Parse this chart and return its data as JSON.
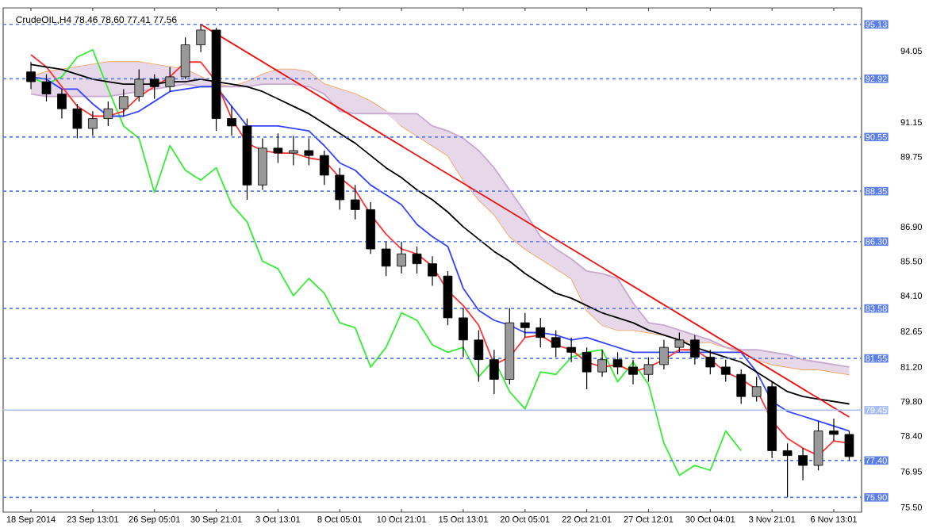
{
  "chart_data": {
    "type": "candlestick",
    "title": "CrudeOIL,H4  78.46 78.60 77.41 77.56",
    "categories": [
      "18 Sep 2014",
      null,
      null,
      null,
      "23 Sep 13:01",
      null,
      null,
      null,
      "26 Sep 05:01",
      null,
      null,
      null,
      "30 Sep 21:01",
      null,
      null,
      null,
      "3 Oct 13:01",
      null,
      null,
      null,
      "8 Oct 05:01",
      null,
      null,
      null,
      "10 Oct 21:01",
      null,
      null,
      null,
      "15 Oct 13:01",
      null,
      null,
      null,
      "20 Oct 05:01",
      null,
      null,
      null,
      "22 Oct 21:01",
      null,
      null,
      null,
      "27 Oct 12:01",
      null,
      null,
      null,
      "30 Oct 04:01",
      null,
      null,
      null,
      "3 Nov 21:01",
      null,
      null,
      null,
      "6 Nov 13:01",
      null
    ],
    "ohlc": [
      [
        93.2,
        93.6,
        92.5,
        92.8
      ],
      [
        92.8,
        93.1,
        92.0,
        92.3
      ],
      [
        92.3,
        92.5,
        91.3,
        91.7
      ],
      [
        91.7,
        91.9,
        90.5,
        90.9
      ],
      [
        90.9,
        91.6,
        90.6,
        91.3
      ],
      [
        91.3,
        92.0,
        91.0,
        91.7
      ],
      [
        91.7,
        92.5,
        91.4,
        92.2
      ],
      [
        92.2,
        93.3,
        92.0,
        92.9
      ],
      [
        92.9,
        93.1,
        92.1,
        92.6
      ],
      [
        92.6,
        93.4,
        92.4,
        93.0
      ],
      [
        93.0,
        94.6,
        92.9,
        94.3
      ],
      [
        94.3,
        95.13,
        94.0,
        94.9
      ],
      [
        94.9,
        95.0,
        90.8,
        91.3
      ],
      [
        91.3,
        91.8,
        90.6,
        91.0
      ],
      [
        91.0,
        91.3,
        88.0,
        88.6
      ],
      [
        88.6,
        90.5,
        88.4,
        90.1
      ],
      [
        90.1,
        90.7,
        89.5,
        89.9
      ],
      [
        89.9,
        90.6,
        89.4,
        90.0
      ],
      [
        90.0,
        90.5,
        89.4,
        89.8
      ],
      [
        89.8,
        90.0,
        88.6,
        89.0
      ],
      [
        89.0,
        89.3,
        87.6,
        88.0
      ],
      [
        88.0,
        88.6,
        87.2,
        87.6
      ],
      [
        87.6,
        87.9,
        85.8,
        86.0
      ],
      [
        86.0,
        86.3,
        84.9,
        85.3
      ],
      [
        85.3,
        86.3,
        85.0,
        85.8
      ],
      [
        85.8,
        86.1,
        85.0,
        85.4
      ],
      [
        85.4,
        85.7,
        84.5,
        84.9
      ],
      [
        84.9,
        85.1,
        82.9,
        83.2
      ],
      [
        83.2,
        83.6,
        81.6,
        82.3
      ],
      [
        82.3,
        82.7,
        80.6,
        81.5
      ],
      [
        81.5,
        81.9,
        80.1,
        80.7
      ],
      [
        80.7,
        83.6,
        80.5,
        83.0
      ],
      [
        83.0,
        83.4,
        82.4,
        82.8
      ],
      [
        82.8,
        83.2,
        82.0,
        82.4
      ],
      [
        82.4,
        82.7,
        81.6,
        82.0
      ],
      [
        82.0,
        82.4,
        81.4,
        81.8
      ],
      [
        81.8,
        82.0,
        80.3,
        81.0
      ],
      [
        81.0,
        81.9,
        80.8,
        81.5
      ],
      [
        81.5,
        81.8,
        80.9,
        81.2
      ],
      [
        81.2,
        81.5,
        80.5,
        80.9
      ],
      [
        80.9,
        81.6,
        80.6,
        81.3
      ],
      [
        81.3,
        82.3,
        81.1,
        82.0
      ],
      [
        82.0,
        82.6,
        81.8,
        82.3
      ],
      [
        82.3,
        82.5,
        81.3,
        81.6
      ],
      [
        81.6,
        81.9,
        80.9,
        81.2
      ],
      [
        81.2,
        81.5,
        80.6,
        80.9
      ],
      [
        80.9,
        81.1,
        79.7,
        80.0
      ],
      [
        80.0,
        80.8,
        79.8,
        80.4
      ],
      [
        80.4,
        80.6,
        77.5,
        77.8
      ],
      [
        77.8,
        78.1,
        75.9,
        77.6
      ],
      [
        77.6,
        77.9,
        76.6,
        77.2
      ],
      [
        77.2,
        79.0,
        77.0,
        78.6
      ],
      [
        78.6,
        79.1,
        78.2,
        78.46
      ],
      [
        78.46,
        78.6,
        77.41,
        77.56
      ]
    ],
    "series": [
      {
        "type": "line",
        "color": "#f4a460",
        "values": [
          93.0,
          93.2,
          93.3,
          93.4,
          93.5,
          93.6,
          93.6,
          93.6,
          93.5,
          93.4,
          93.3,
          93.0,
          92.7,
          92.6,
          92.8,
          93.1,
          93.3,
          93.3,
          93.2,
          92.7,
          92.5,
          92.3,
          92.0,
          91.6,
          91.0,
          90.6,
          90.2,
          89.8,
          88.8,
          88.0,
          87.4,
          86.5,
          86.0,
          85.6,
          85.2,
          84.8,
          83.5,
          82.9,
          82.7,
          82.7,
          82.6,
          82.5,
          82.3,
          82.2,
          82.2,
          82.0,
          81.8,
          81.5,
          81.3,
          81.2,
          81.1,
          81.1,
          81.0,
          80.9
        ]
      },
      {
        "type": "line",
        "color": "#c8a8d0",
        "values": [
          92.3,
          92.2,
          92.2,
          92.2,
          92.2,
          92.2,
          92.3,
          92.4,
          92.5,
          92.6,
          92.7,
          92.6,
          92.6,
          92.6,
          92.6,
          92.7,
          92.7,
          92.7,
          92.6,
          92.3,
          91.6,
          91.5,
          91.5,
          91.5,
          91.5,
          91.5,
          91.0,
          90.8,
          90.5,
          90.0,
          89.3,
          88.4,
          87.5,
          86.5,
          86.0,
          85.6,
          85.1,
          85.0,
          84.8,
          83.8,
          83.0,
          82.9,
          82.7,
          82.5,
          82.3,
          82.0,
          81.9,
          81.9,
          81.8,
          81.7,
          81.5,
          81.4,
          81.3,
          81.2
        ],
        "lower": [
          92.3,
          92.2,
          92.2,
          92.2,
          92.2,
          92.2,
          92.3,
          92.4,
          92.5,
          92.6,
          92.7,
          92.6,
          92.6,
          92.6,
          92.6,
          92.7,
          92.7,
          92.7,
          92.6,
          92.3,
          91.6,
          91.5,
          91.5,
          91.5,
          91.0,
          90.6,
          90.2,
          89.8,
          88.8,
          88.0,
          87.4,
          86.5,
          86.0,
          85.6,
          85.2,
          84.8,
          83.5,
          82.9,
          82.7,
          82.7,
          82.6,
          82.5,
          82.3,
          82.2,
          82.2,
          82.0,
          81.8,
          81.5,
          81.3,
          81.2,
          81.1,
          81.1,
          81.0,
          80.9
        ],
        "upper": [
          93.0,
          93.2,
          93.3,
          93.4,
          93.5,
          93.6,
          93.6,
          93.6,
          93.5,
          93.4,
          93.3,
          93.0,
          92.7,
          92.6,
          92.8,
          93.1,
          93.3,
          93.3,
          93.2,
          92.7,
          92.5,
          92.3,
          92.0,
          91.6,
          91.5,
          91.5,
          91.0,
          90.8,
          90.5,
          90.0,
          89.3,
          88.4,
          87.5,
          86.5,
          86.0,
          85.6,
          85.1,
          85.0,
          84.8,
          83.8,
          83.0,
          82.9,
          82.7,
          82.5,
          82.3,
          82.0,
          81.9,
          81.9,
          81.8,
          81.7,
          81.5,
          81.4,
          81.3,
          81.2
        ]
      },
      {
        "type": "line",
        "color": "#33ee33",
        "values": [
          93.0,
          92.7,
          93.0,
          93.8,
          94.1,
          92.5,
          91.0,
          90.5,
          88.3,
          90.2,
          89.2,
          88.8,
          89.3,
          87.8,
          87.1,
          85.5,
          85.2,
          84.1,
          84.8,
          84.2,
          83.0,
          82.8,
          81.2,
          82.0,
          83.4,
          83.1,
          82.1,
          81.8,
          82.0,
          80.8,
          81.5,
          80.2,
          79.5,
          81.0,
          80.9,
          81.6,
          81.8,
          81.9,
          80.6,
          81.4,
          80.5,
          78.1,
          76.8,
          77.2,
          77.0,
          78.6,
          77.8,
          null,
          null,
          null,
          null,
          null,
          null,
          null
        ]
      },
      {
        "type": "line",
        "color": "#3344ff",
        "values": [
          93.0,
          92.9,
          92.5,
          92.5,
          91.9,
          91.4,
          91.4,
          91.6,
          92.0,
          92.4,
          92.5,
          92.6,
          92.6,
          91.8,
          91.0,
          91.0,
          91.0,
          90.9,
          90.8,
          90.2,
          89.5,
          89.2,
          88.6,
          88.2,
          87.8,
          87.0,
          86.5,
          86.1,
          84.4,
          83.5,
          83.1,
          82.9,
          82.6,
          82.6,
          82.5,
          82.3,
          82.4,
          82.2,
          82.0,
          81.8,
          81.8,
          81.8,
          81.8,
          81.8,
          81.8,
          81.8,
          81.8,
          81.0,
          79.8,
          79.4,
          79.2,
          79.0,
          78.8,
          78.6
        ]
      },
      {
        "type": "line",
        "color": "#ff3333",
        "values": [
          93.9,
          93.4,
          92.6,
          91.8,
          91.4,
          91.4,
          91.6,
          92.2,
          92.6,
          93.0,
          93.6,
          93.6,
          92.8,
          91.3,
          90.3,
          90.0,
          89.9,
          89.9,
          89.7,
          89.6,
          88.9,
          88.4,
          87.4,
          86.6,
          86.0,
          85.8,
          85.3,
          84.3,
          83.7,
          82.9,
          81.3,
          81.6,
          82.4,
          82.5,
          82.1,
          81.9,
          81.4,
          81.2,
          81.3,
          81.0,
          81.2,
          81.5,
          81.9,
          81.9,
          81.5,
          81.0,
          80.7,
          80.3,
          79.0,
          78.3,
          77.9,
          77.6,
          78.2,
          78.1
        ]
      },
      {
        "type": "line",
        "color": "#000000",
        "values": [
          93.5,
          93.4,
          93.3,
          93.1,
          92.9,
          92.8,
          92.7,
          92.7,
          92.7,
          92.8,
          92.8,
          92.9,
          92.8,
          92.7,
          92.6,
          92.4,
          92.1,
          91.8,
          91.5,
          91.1,
          90.7,
          90.3,
          89.8,
          89.3,
          88.9,
          88.4,
          88.0,
          87.5,
          86.9,
          86.4,
          85.9,
          85.5,
          85.0,
          84.6,
          84.2,
          84.0,
          83.7,
          83.4,
          83.2,
          83.0,
          82.7,
          82.5,
          82.3,
          82.0,
          81.8,
          81.6,
          81.4,
          81.0,
          80.6,
          80.2,
          80.0,
          79.9,
          79.8,
          79.7
        ]
      },
      {
        "type": "line",
        "color": "#ee1111",
        "values": [
          null,
          null,
          null,
          null,
          null,
          null,
          null,
          null,
          null,
          null,
          null,
          95.13,
          94.75,
          94.37,
          93.99,
          93.61,
          93.23,
          92.85,
          92.47,
          92.09,
          91.71,
          91.33,
          90.95,
          90.57,
          90.19,
          89.81,
          89.43,
          89.05,
          88.67,
          88.29,
          87.91,
          87.53,
          87.15,
          86.77,
          86.39,
          86.01,
          85.63,
          85.25,
          84.87,
          84.49,
          84.11,
          83.73,
          83.35,
          82.97,
          82.59,
          82.21,
          81.83,
          81.45,
          81.07,
          80.69,
          80.31,
          79.93,
          79.55,
          79.17
        ]
      }
    ],
    "ylim": [
      75.3,
      95.8
    ],
    "yticks": [
      94.05,
      91.15,
      89.75,
      {
        "value": 86.9,
        "label": "86.90"
      },
      {
        "value": 85.5,
        "label": "85.50"
      },
      {
        "value": 84.1,
        "label": "84.10"
      },
      82.65,
      {
        "value": 81.2,
        "label": "81.20"
      },
      {
        "value": 79.8,
        "label": "79.80"
      },
      {
        "value": 78.4,
        "label": "78.40"
      },
      76.95,
      {
        "value": 75.5,
        "label": "75.50"
      }
    ],
    "ref_lines": [
      {
        "axis": "y",
        "value": 95.13,
        "label": "95.13",
        "color": "#5b7fe6",
        "line_style": "dashed"
      },
      {
        "axis": "y",
        "value": 92.92,
        "label": "92.92",
        "color": "#5b7fe6",
        "line_style": "dashed"
      },
      {
        "axis": "y",
        "value": 90.55,
        "label": "90.55",
        "color": "#5b7fe6",
        "line_style": "dashed"
      },
      {
        "axis": "y",
        "value": 88.35,
        "label": "88.35",
        "color": "#5b7fe6",
        "line_style": "dashed"
      },
      {
        "axis": "y",
        "value": 86.3,
        "label": "86.30",
        "color": "#5b7fe6",
        "line_style": "dashed"
      },
      {
        "axis": "y",
        "value": 83.58,
        "label": "83.58",
        "color": "#5b7fe6",
        "line_style": "dashed"
      },
      {
        "axis": "y",
        "value": 81.55,
        "label": "81.55",
        "color": "#5b7fe6",
        "line_style": "dashed"
      },
      {
        "axis": "y",
        "value": 79.45,
        "label": "79.45",
        "color": "#a8bff2",
        "line_style": "solid"
      },
      {
        "axis": "y",
        "value": 77.4,
        "label": "77.40",
        "color": "#5b7fe6",
        "line_style": "dashed"
      },
      {
        "axis": "y",
        "value": 75.9,
        "label": "75.90",
        "color": "#5b7fe6",
        "line_style": "dashed"
      }
    ],
    "grid": false
  }
}
